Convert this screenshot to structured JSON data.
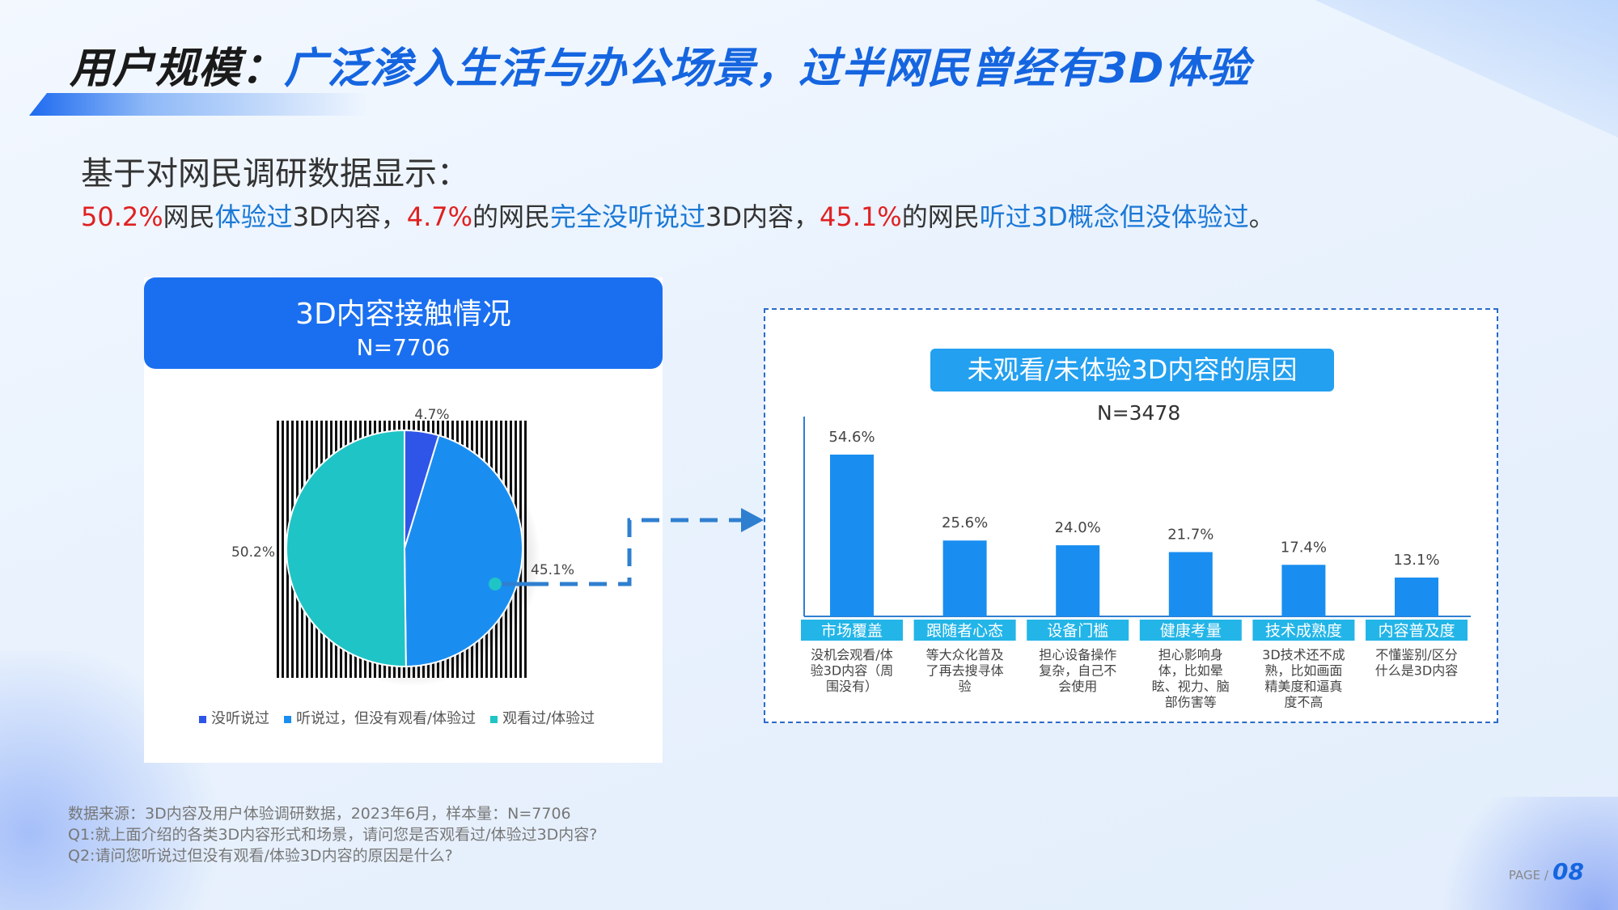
{
  "header": {
    "title_part1": "用户规模：",
    "title_part2": "广泛渗入生活与办公场景，过半网民曾经有3D体验"
  },
  "intro": {
    "title": "基于对网民调研数据显示：",
    "segments": [
      {
        "text": "50.2%",
        "style": "red"
      },
      {
        "text": "网民",
        "style": "plain"
      },
      {
        "text": "体验过",
        "style": "blue"
      },
      {
        "text": "3D内容，",
        "style": "plain"
      },
      {
        "text": "4.7%",
        "style": "red"
      },
      {
        "text": "的网民",
        "style": "plain"
      },
      {
        "text": "完全没听说过",
        "style": "blue"
      },
      {
        "text": "3D内容，",
        "style": "plain"
      },
      {
        "text": "45.1%",
        "style": "red"
      },
      {
        "text": "的网民",
        "style": "plain"
      },
      {
        "text": "听过3D概念但没体验过",
        "style": "blue"
      },
      {
        "text": "。",
        "style": "plain"
      }
    ]
  },
  "chart_data": [
    {
      "type": "pie",
      "title": "3D内容接触情况",
      "subtitle": "N=7706",
      "slices": [
        {
          "label": "没听说过",
          "value": 4.7,
          "display": "4.7%",
          "color": "#2f55e8"
        },
        {
          "label": "听说过，但没有观看/体验过",
          "value": 45.1,
          "display": "45.1%",
          "color": "#1a8ef0"
        },
        {
          "label": "观看过/体验过",
          "value": 50.2,
          "display": "50.2%",
          "color": "#1fc4c6"
        }
      ],
      "legend_position": "bottom"
    },
    {
      "type": "bar",
      "title": "未观看/未体验3D内容的原因",
      "subtitle": "N=3478",
      "categories": [
        "市场覆盖",
        "跟随者心态",
        "设备门槛",
        "健康考量",
        "技术成熟度",
        "内容普及度"
      ],
      "values": [
        54.6,
        25.6,
        24.0,
        21.7,
        17.4,
        13.1
      ],
      "value_labels": [
        "54.6%",
        "25.6%",
        "24.0%",
        "21.7%",
        "17.4%",
        "13.1%"
      ],
      "descriptions": [
        [
          "没机会观看/体",
          "验3D内容（周",
          "围没有）"
        ],
        [
          "等大众化普及",
          "了再去搜寻体",
          "验"
        ],
        [
          "担心设备操作",
          "复杂，自己不",
          "会使用"
        ],
        [
          "担心影响身",
          "体，比如晕",
          "眩、视力、脑",
          "部伤害等"
        ],
        [
          "3D技术还不成",
          "熟，比如画面",
          "精美度和逼真",
          "度不高"
        ],
        [
          "不懂鉴别/区分",
          "什么是3D内容"
        ]
      ],
      "ylim": [
        0,
        60
      ],
      "bar_color": "#1a8ef0",
      "category_color": "#23b5e8"
    }
  ],
  "source": {
    "line1": "数据来源：3D内容及用户体验调研数据，2023年6月，样本量：N=7706",
    "line2": "Q1:就上面介绍的各类3D内容形式和场景，请问您是否观看过/体验过3D内容?",
    "line3": "Q2:请问您听说过但没有观看/体验3D内容的原因是什么?"
  },
  "page": {
    "label": "PAGE /",
    "number": "08"
  }
}
